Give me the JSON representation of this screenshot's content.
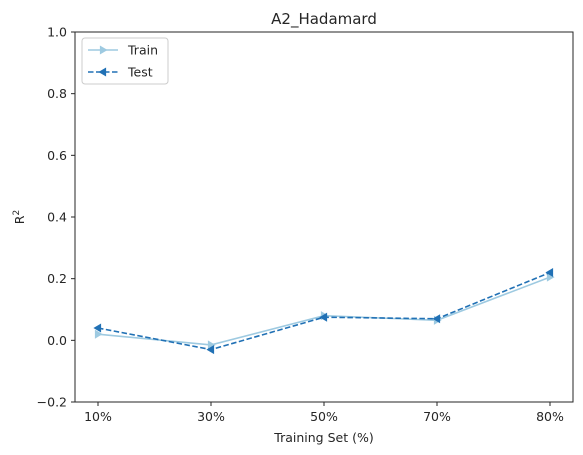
{
  "chart_data": {
    "type": "line",
    "title": "A2_Hadamard",
    "xlabel": "Training Set (%)",
    "ylabel": "R",
    "ylabel_superscript": "2",
    "categories": [
      "10%",
      "30%",
      "50%",
      "70%",
      "80%"
    ],
    "ylim": [
      -0.2,
      1.0
    ],
    "yticks": [
      "−0.2",
      "0.0",
      "0.2",
      "0.4",
      "0.6",
      "0.8",
      "1.0"
    ],
    "ytick_values": [
      -0.2,
      0.0,
      0.2,
      0.4,
      0.6,
      0.8,
      1.0
    ],
    "grid": false,
    "legend_position": "top-left",
    "series": [
      {
        "name": "Train",
        "values": [
          0.02,
          -0.015,
          0.08,
          0.065,
          0.205
        ],
        "color": "#9ecae1",
        "style": "solid",
        "marker": "triangle-right"
      },
      {
        "name": "Test",
        "values": [
          0.04,
          -0.03,
          0.075,
          0.07,
          0.22
        ],
        "color": "#2171b5",
        "style": "dashed",
        "marker": "triangle-left"
      }
    ]
  }
}
